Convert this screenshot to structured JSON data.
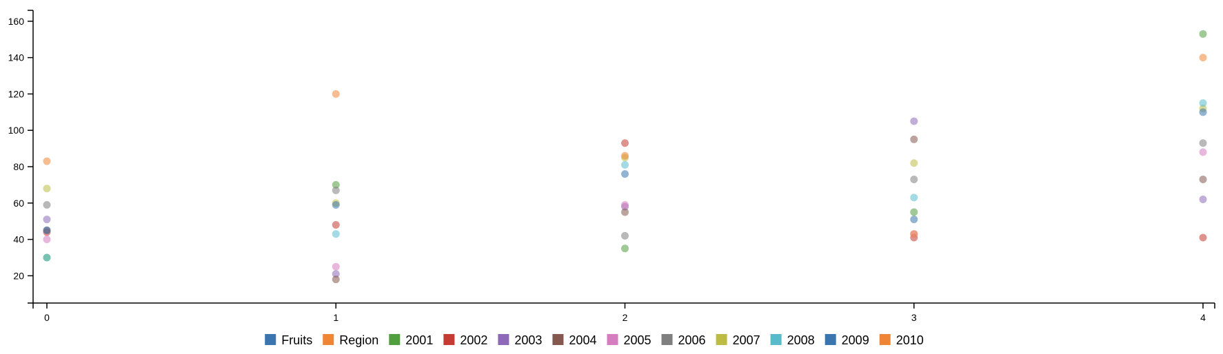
{
  "chart_data": {
    "type": "scatter",
    "x": [
      0,
      1,
      2,
      3,
      4
    ],
    "xlim": [
      0,
      4
    ],
    "ylim": [
      5,
      166
    ],
    "xticks": [
      "0",
      "1",
      "2",
      "3",
      "4"
    ],
    "yticks": [
      "20",
      "40",
      "60",
      "80",
      "100",
      "120",
      "140",
      "160"
    ],
    "legend_position": "bottom",
    "legend": [
      {
        "label": "Fruits",
        "color": "#3b75af"
      },
      {
        "label": "Region",
        "color": "#ef8636"
      },
      {
        "label": "2001",
        "color": "#519e3e"
      },
      {
        "label": "2002",
        "color": "#c53a32"
      },
      {
        "label": "2003",
        "color": "#8d69b8"
      },
      {
        "label": "2004",
        "color": "#84584e"
      },
      {
        "label": "2005",
        "color": "#d57dbf"
      },
      {
        "label": "2006",
        "color": "#7f7f7f"
      },
      {
        "label": "2007",
        "color": "#bcbc45"
      },
      {
        "label": "2008",
        "color": "#58bbcc"
      },
      {
        "label": "2009",
        "color": "#3b75af"
      },
      {
        "label": "2010",
        "color": "#ef8636"
      }
    ],
    "series": [
      {
        "name": "2001",
        "color": "#519e3e",
        "values": [
          30,
          70,
          35,
          55,
          153
        ]
      },
      {
        "name": "2002",
        "color": "#c53a32",
        "values": [
          44,
          48,
          93,
          41,
          41
        ]
      },
      {
        "name": "2003",
        "color": "#8d69b8",
        "values": [
          51,
          21,
          58,
          105,
          62
        ]
      },
      {
        "name": "2004",
        "color": "#84584e",
        "values": [
          45,
          18,
          55,
          95,
          73
        ]
      },
      {
        "name": "2005",
        "color": "#d57dbf",
        "values": [
          40,
          25,
          59,
          43,
          88
        ]
      },
      {
        "name": "2006",
        "color": "#7f7f7f",
        "values": [
          59,
          67,
          42,
          73,
          93
        ]
      },
      {
        "name": "2007",
        "color": "#bcbc45",
        "values": [
          68,
          60,
          85,
          82,
          112
        ]
      },
      {
        "name": "2008",
        "color": "#58bbcc",
        "values": [
          30,
          43,
          81,
          63,
          115
        ]
      },
      {
        "name": "2009",
        "color": "#3b75af",
        "values": [
          45,
          59,
          76,
          51,
          110
        ]
      },
      {
        "name": "2010",
        "color": "#ef8636",
        "values": [
          83,
          120,
          86,
          43,
          140
        ]
      }
    ]
  }
}
